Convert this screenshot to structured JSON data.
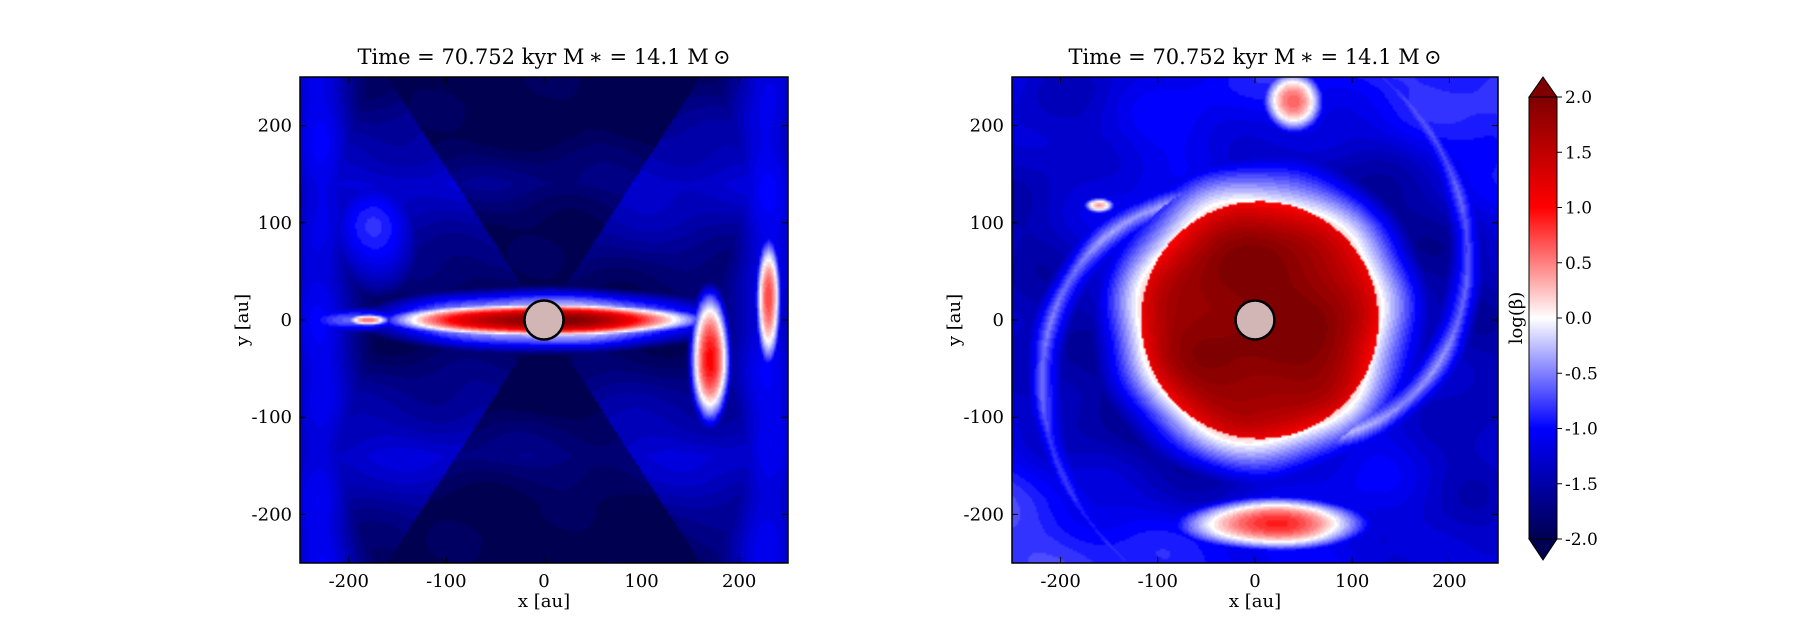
{
  "chart_data": [
    {
      "type": "heatmap",
      "panel": "left",
      "title": "Time = 70.752 kyr    M ∗ = 14.1 M ⊙",
      "xlabel": "x [au]",
      "ylabel": "y [au]",
      "xlim": [
        -250,
        250
      ],
      "ylim": [
        -250,
        250
      ],
      "xticks": [
        -200,
        -100,
        0,
        100,
        200
      ],
      "yticks": [
        -200,
        -100,
        0,
        100,
        200
      ],
      "xtick_labels": [
        "-200",
        "-100",
        "0",
        "100",
        "200"
      ],
      "ytick_labels": [
        "-200",
        "-100",
        "0",
        "100",
        "200"
      ],
      "quantity": "log(beta)",
      "scene": "edge-on",
      "star_radius": 20,
      "features": [
        {
          "kind": "disk",
          "x": 0,
          "y": 0,
          "rx": 120,
          "ry": 13,
          "value": 2.0
        },
        {
          "kind": "blob",
          "x": -180,
          "y": 0,
          "rx": 22,
          "ry": 6,
          "value": 0.6
        },
        {
          "kind": "ridge",
          "x": 170,
          "y": -40,
          "rx": 18,
          "ry": 60,
          "value": 1.0
        },
        {
          "kind": "ridge",
          "x": 230,
          "y": 20,
          "rx": 12,
          "ry": 60,
          "value": 0.8
        }
      ]
    },
    {
      "type": "heatmap",
      "panel": "right",
      "title": "Time = 70.752 kyr    M ∗ = 14.1 M ⊙",
      "xlabel": "x [au]",
      "ylabel": "y [au]",
      "xlim": [
        -250,
        250
      ],
      "ylim": [
        -250,
        250
      ],
      "xticks": [
        -200,
        -100,
        0,
        100,
        200
      ],
      "yticks": [
        -200,
        -100,
        0,
        100,
        200
      ],
      "xtick_labels": [
        "-200",
        "-100",
        "0",
        "100",
        "200"
      ],
      "ytick_labels": [
        "-200",
        "-100",
        "0",
        "100",
        "200"
      ],
      "quantity": "log(beta)",
      "scene": "face-on",
      "star_radius": 20,
      "features": [
        {
          "kind": "disk",
          "x": 5,
          "y": 0,
          "r": 122,
          "value": 2.0
        },
        {
          "kind": "arc",
          "x": 20,
          "y": -210,
          "rx": 90,
          "ry": 25,
          "value": 0.8
        },
        {
          "kind": "blob",
          "x": 40,
          "y": 225,
          "rx": 30,
          "ry": 30,
          "value": 0.6
        },
        {
          "kind": "blob",
          "x": -160,
          "y": 118,
          "rx": 16,
          "ry": 8,
          "value": 0.3
        }
      ]
    }
  ],
  "colorbar": {
    "label": "log(β)",
    "min": -2.0,
    "max": 2.0,
    "extend": "both",
    "colormap": "seismic",
    "ticks": [
      2.0,
      1.5,
      1.0,
      0.5,
      0.0,
      -0.5,
      -1.0,
      -1.5,
      -2.0
    ],
    "tick_labels": [
      "2.0",
      "1.5",
      "1.0",
      "0.5",
      "0.0",
      "-0.5",
      "-1.0",
      "-1.5",
      "-2.0"
    ]
  },
  "colors": {
    "dark_blue": "#000050",
    "blue": "#0000ff",
    "white": "#ffffff",
    "red": "#ff0000",
    "dark_red": "#7f0000",
    "star_fill": "#d2b5b5"
  }
}
